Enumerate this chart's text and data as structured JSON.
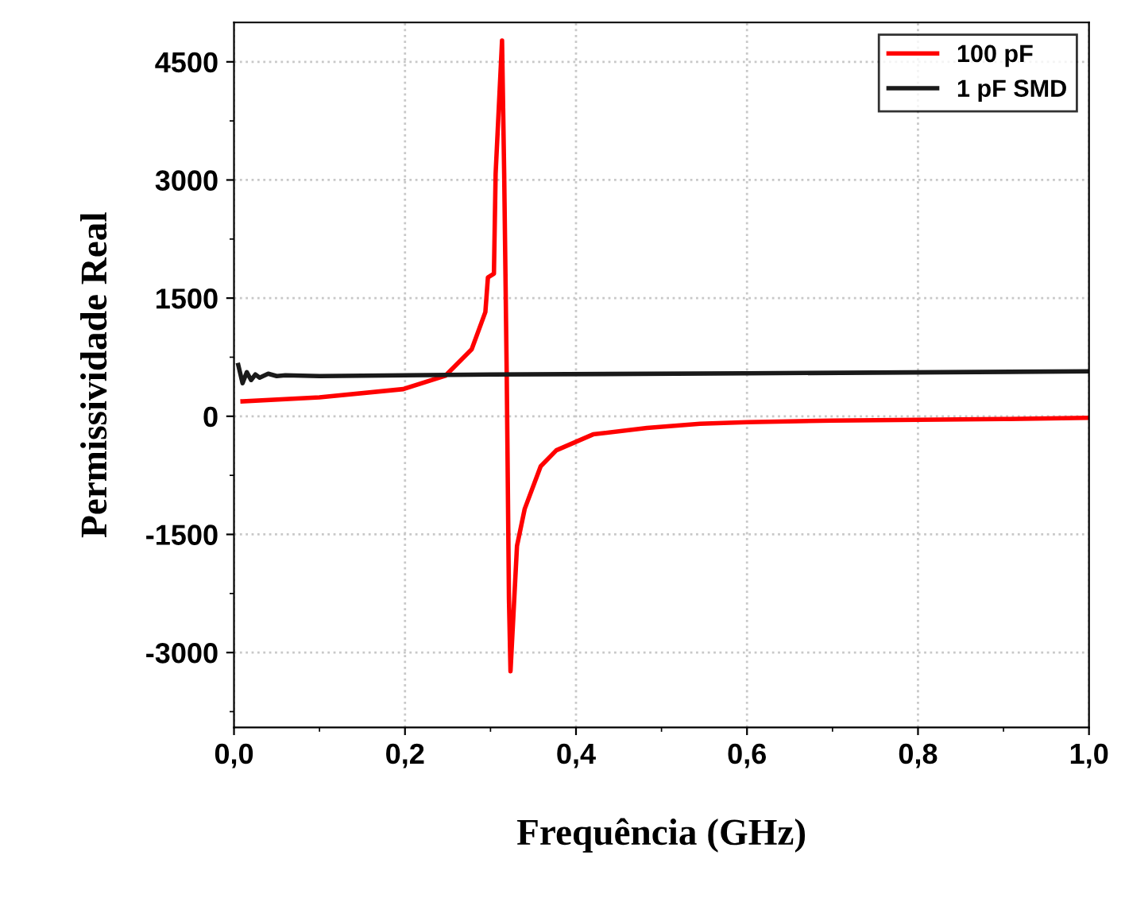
{
  "chart_data": {
    "type": "line",
    "xlabel": "Frequência (GHz)",
    "ylabel": "Permissividade Real",
    "xlim": [
      0,
      1
    ],
    "ylim": [
      -3950,
      5000
    ],
    "xticks": [
      {
        "value": 0,
        "label": "0,0"
      },
      {
        "value": 0.2,
        "label": "0,2"
      },
      {
        "value": 0.4,
        "label": "0,4"
      },
      {
        "value": 0.6,
        "label": "0,6"
      },
      {
        "value": 0.8,
        "label": "0,8"
      },
      {
        "value": 1,
        "label": "1,0"
      }
    ],
    "yticks": [
      -3000,
      -1500,
      0,
      1500,
      3000,
      4500
    ],
    "grid": true,
    "legend": "top right",
    "series": [
      {
        "name": "100 pF",
        "color": "#ff0000",
        "x": [
          0.01,
          0.1,
          0.198,
          0.247,
          0.278,
          0.294,
          0.297,
          0.304,
          0.306,
          0.3135,
          0.316,
          0.319,
          0.3216,
          0.3234,
          0.331,
          0.34,
          0.3587,
          0.377,
          0.42,
          0.483,
          0.545,
          0.6,
          0.7,
          0.8,
          0.9,
          1.0
        ],
        "values": [
          190,
          240,
          345,
          513,
          850,
          1324,
          1763,
          1810,
          3080,
          4770,
          3080,
          513,
          -2325,
          -3237,
          -1645,
          -1176,
          -635,
          -432,
          -230,
          -148,
          -95,
          -75,
          -55,
          -45,
          -35,
          -20
        ]
      },
      {
        "name": "1 pF SMD",
        "color": "#1a1a1a",
        "x": [
          0.005,
          0.01,
          0.015,
          0.02,
          0.025,
          0.03,
          0.04,
          0.05,
          0.06,
          0.1,
          0.3,
          0.6,
          1.0
        ],
        "values": [
          650,
          420,
          560,
          460,
          530,
          490,
          540,
          510,
          520,
          510,
          530,
          545,
          570
        ]
      }
    ]
  }
}
